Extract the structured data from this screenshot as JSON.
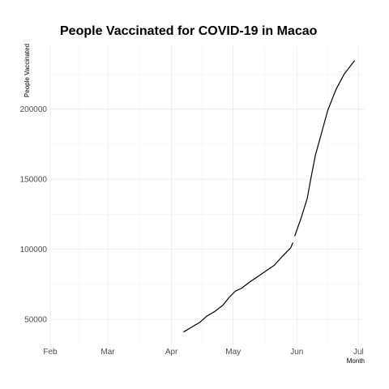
{
  "chart_data": {
    "type": "line",
    "title": "People Vaccinated for COVID-19 in Macao",
    "xlabel": "Month",
    "ylabel": "People Vaccinated",
    "x_ticks": [
      {
        "label": "Feb",
        "date": "2021-02-01"
      },
      {
        "label": "Mar",
        "date": "2021-03-01"
      },
      {
        "label": "Apr",
        "date": "2021-04-01"
      },
      {
        "label": "May",
        "date": "2021-05-01"
      },
      {
        "label": "Jun",
        "date": "2021-06-01"
      },
      {
        "label": "Jul",
        "date": "2021-07-01"
      }
    ],
    "xlim": [
      "2021-02-01",
      "2021-07-04"
    ],
    "y_ticks": [
      50000,
      100000,
      150000,
      200000
    ],
    "ylim": [
      32000,
      245000
    ],
    "grid": true,
    "legend": "none",
    "series": [
      {
        "color": "#000000",
        "segments": [
          [
            {
              "x": "2021-04-07",
              "y": 41000
            },
            {
              "x": "2021-04-11",
              "y": 44500
            },
            {
              "x": "2021-04-15",
              "y": 48000
            },
            {
              "x": "2021-04-18",
              "y": 52000
            },
            {
              "x": "2021-04-22",
              "y": 55500
            },
            {
              "x": "2021-04-26",
              "y": 60000
            },
            {
              "x": "2021-04-29",
              "y": 65500
            },
            {
              "x": "2021-05-02",
              "y": 70000
            },
            {
              "x": "2021-05-05",
              "y": 72000
            },
            {
              "x": "2021-05-09",
              "y": 76500
            },
            {
              "x": "2021-05-13",
              "y": 80500
            },
            {
              "x": "2021-05-17",
              "y": 84500
            },
            {
              "x": "2021-05-21",
              "y": 88500
            },
            {
              "x": "2021-05-25",
              "y": 95000
            },
            {
              "x": "2021-05-29",
              "y": 101000
            },
            {
              "x": "2021-05-30",
              "y": 104500
            }
          ],
          [
            {
              "x": "2021-05-31",
              "y": 109500
            },
            {
              "x": "2021-06-03",
              "y": 122000
            },
            {
              "x": "2021-06-06",
              "y": 136000
            },
            {
              "x": "2021-06-08",
              "y": 152000
            },
            {
              "x": "2021-06-10",
              "y": 167000
            },
            {
              "x": "2021-06-13",
              "y": 183000
            },
            {
              "x": "2021-06-16",
              "y": 199000
            },
            {
              "x": "2021-06-20",
              "y": 214000
            },
            {
              "x": "2021-06-24",
              "y": 225000
            },
            {
              "x": "2021-06-29",
              "y": 234500
            }
          ]
        ]
      }
    ]
  }
}
